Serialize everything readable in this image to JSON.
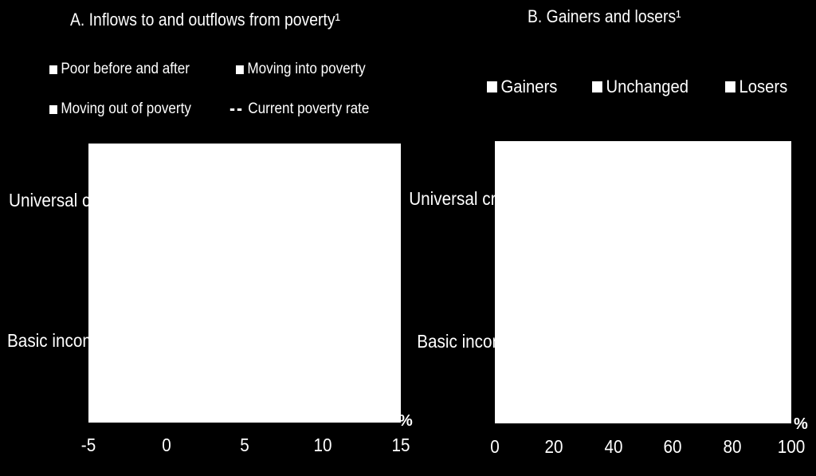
{
  "chart_data": [
    {
      "type": "bar",
      "title": "A. Inflows to and outflows from poverty¹",
      "legend": [
        "Poor before and after",
        "Moving into poverty",
        "Moving out of poverty",
        "Current poverty rate"
      ],
      "categories": [
        "Universal credit",
        "Basic income"
      ],
      "xlim": [
        -5,
        15
      ],
      "xticks": [
        "-5",
        "0",
        "5",
        "10",
        "15"
      ],
      "unit": "%",
      "grid": false,
      "legend_placement": "top"
    },
    {
      "type": "bar",
      "title": "B. Gainers and losers¹",
      "legend": [
        "Gainers",
        "Unchanged",
        "Losers"
      ],
      "categories": [
        "Universal credit",
        "Basic income"
      ],
      "xlim": [
        0,
        100
      ],
      "xticks": [
        "0",
        "20",
        "40",
        "60",
        "80",
        "100"
      ],
      "unit": "%",
      "grid": false,
      "legend_placement": "top"
    }
  ],
  "colors": {
    "background": "#000000",
    "plot_area": "#ffffff",
    "text": "#ffffff"
  }
}
